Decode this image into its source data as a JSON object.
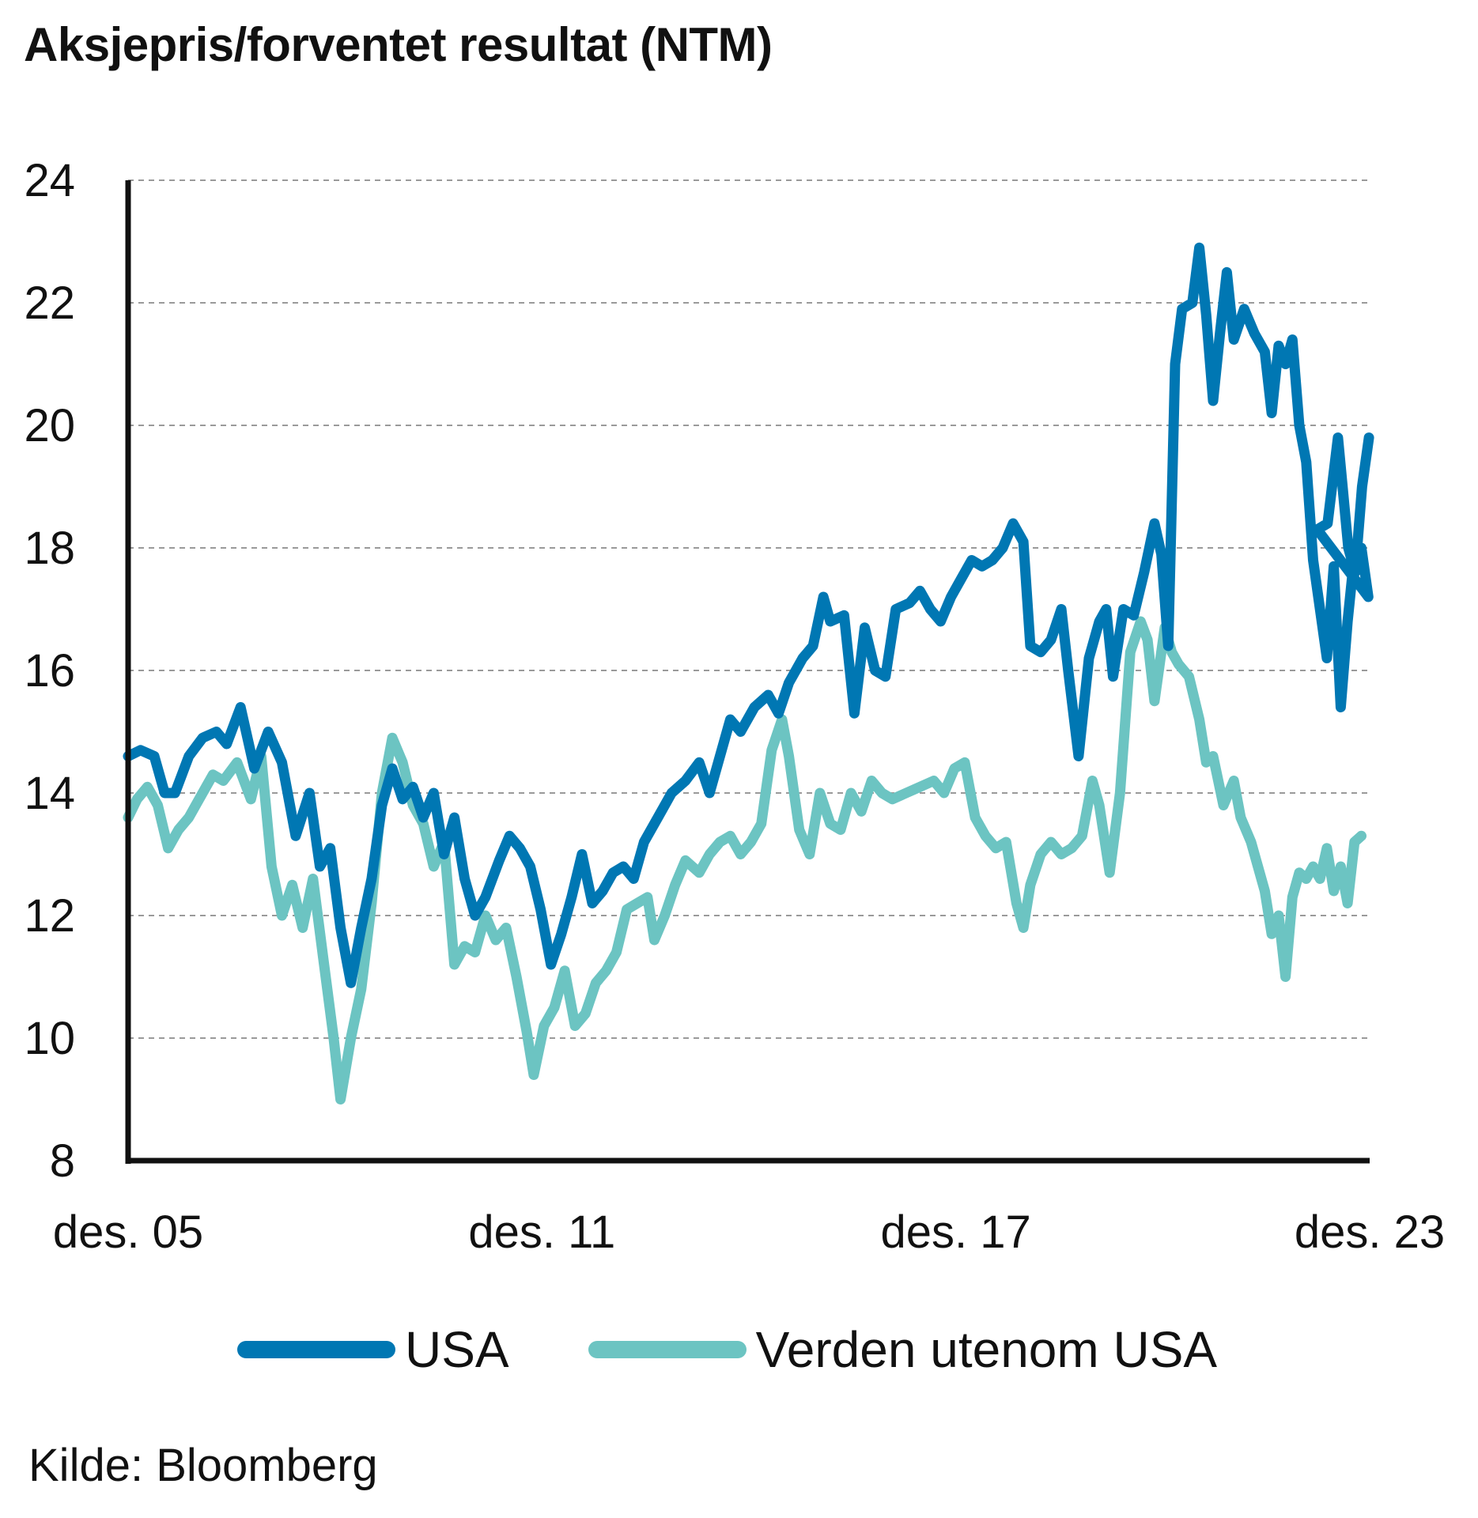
{
  "title": "Aksjepris/forventet resultat (NTM)",
  "source": "Kilde: Bloomberg",
  "chart_data": {
    "type": "line",
    "title": "Aksjepris/forventet resultat (NTM)",
    "xlabel": "",
    "ylabel": "",
    "ylim": [
      8,
      24
    ],
    "yticks": [
      8,
      10,
      12,
      14,
      16,
      18,
      20,
      22,
      24
    ],
    "xlim": [
      2005.92,
      2023.92
    ],
    "xticks": [
      {
        "x": 2005.92,
        "label": "des. 05"
      },
      {
        "x": 2011.92,
        "label": "des. 11"
      },
      {
        "x": 2017.92,
        "label": "des. 17"
      },
      {
        "x": 2023.92,
        "label": "des. 23"
      }
    ],
    "grid": "horizontal dashed",
    "legend_position": "bottom",
    "series": [
      {
        "name": "USA",
        "color": "#0077b3",
        "points": [
          [
            2005.92,
            14.6
          ],
          [
            2006.1,
            14.7
          ],
          [
            2006.3,
            14.6
          ],
          [
            2006.45,
            14.0
          ],
          [
            2006.6,
            14.0
          ],
          [
            2006.8,
            14.6
          ],
          [
            2007.0,
            14.9
          ],
          [
            2007.2,
            15.0
          ],
          [
            2007.35,
            14.8
          ],
          [
            2007.55,
            15.4
          ],
          [
            2007.75,
            14.4
          ],
          [
            2007.95,
            15.0
          ],
          [
            2008.15,
            14.5
          ],
          [
            2008.35,
            13.3
          ],
          [
            2008.55,
            14.0
          ],
          [
            2008.7,
            12.8
          ],
          [
            2008.85,
            13.1
          ],
          [
            2009.0,
            11.8
          ],
          [
            2009.15,
            10.9
          ],
          [
            2009.3,
            11.8
          ],
          [
            2009.45,
            12.6
          ],
          [
            2009.6,
            13.8
          ],
          [
            2009.75,
            14.4
          ],
          [
            2009.9,
            13.9
          ],
          [
            2010.05,
            14.1
          ],
          [
            2010.2,
            13.6
          ],
          [
            2010.35,
            14.0
          ],
          [
            2010.5,
            13.0
          ],
          [
            2010.65,
            13.6
          ],
          [
            2010.8,
            12.6
          ],
          [
            2010.95,
            12.0
          ],
          [
            2011.1,
            12.3
          ],
          [
            2011.3,
            12.9
          ],
          [
            2011.45,
            13.3
          ],
          [
            2011.6,
            13.1
          ],
          [
            2011.75,
            12.8
          ],
          [
            2011.9,
            12.1
          ],
          [
            2012.05,
            11.2
          ],
          [
            2012.2,
            11.7
          ],
          [
            2012.35,
            12.3
          ],
          [
            2012.5,
            13.0
          ],
          [
            2012.65,
            12.2
          ],
          [
            2012.8,
            12.4
          ],
          [
            2012.95,
            12.7
          ],
          [
            2013.1,
            12.8
          ],
          [
            2013.25,
            12.6
          ],
          [
            2013.4,
            13.2
          ],
          [
            2013.6,
            13.6
          ],
          [
            2013.8,
            14.0
          ],
          [
            2014.0,
            14.2
          ],
          [
            2014.2,
            14.5
          ],
          [
            2014.35,
            14.0
          ],
          [
            2014.5,
            14.6
          ],
          [
            2014.65,
            15.2
          ],
          [
            2014.8,
            15.0
          ],
          [
            2015.0,
            15.4
          ],
          [
            2015.2,
            15.6
          ],
          [
            2015.35,
            15.3
          ],
          [
            2015.5,
            15.8
          ],
          [
            2015.7,
            16.2
          ],
          [
            2015.85,
            16.4
          ],
          [
            2016.0,
            17.2
          ],
          [
            2016.1,
            16.8
          ],
          [
            2016.3,
            16.9
          ],
          [
            2016.45,
            15.3
          ],
          [
            2016.6,
            16.7
          ],
          [
            2016.75,
            16.0
          ],
          [
            2016.9,
            15.9
          ],
          [
            2017.05,
            17.0
          ],
          [
            2017.25,
            17.1
          ],
          [
            2017.4,
            17.3
          ],
          [
            2017.55,
            17.0
          ],
          [
            2017.7,
            16.8
          ],
          [
            2017.85,
            17.2
          ],
          [
            2018.0,
            17.5
          ],
          [
            2018.15,
            17.8
          ],
          [
            2018.3,
            17.7
          ],
          [
            2018.45,
            17.8
          ],
          [
            2018.6,
            18.0
          ],
          [
            2018.75,
            18.4
          ],
          [
            2018.9,
            18.1
          ],
          [
            2019.0,
            16.4
          ],
          [
            2019.15,
            16.3
          ],
          [
            2019.3,
            16.5
          ],
          [
            2019.45,
            17.0
          ],
          [
            2019.55,
            16.0
          ],
          [
            2019.7,
            14.6
          ],
          [
            2019.85,
            16.2
          ],
          [
            2020.0,
            16.8
          ],
          [
            2020.1,
            17.0
          ],
          [
            2020.2,
            15.9
          ],
          [
            2020.35,
            17.0
          ],
          [
            2020.5,
            16.9
          ],
          [
            2020.65,
            17.6
          ],
          [
            2020.8,
            18.4
          ],
          [
            2020.9,
            17.9
          ],
          [
            2021.0,
            16.4
          ],
          [
            2021.1,
            21.0
          ],
          [
            2021.2,
            21.9
          ],
          [
            2021.35,
            22.0
          ],
          [
            2021.45,
            22.9
          ],
          [
            2021.55,
            21.8
          ],
          [
            2021.65,
            20.4
          ],
          [
            2021.75,
            21.5
          ],
          [
            2021.85,
            22.5
          ],
          [
            2021.95,
            21.4
          ],
          [
            2022.1,
            21.9
          ],
          [
            2022.25,
            21.5
          ],
          [
            2022.4,
            21.2
          ],
          [
            2022.5,
            20.2
          ],
          [
            2022.6,
            21.3
          ],
          [
            2022.7,
            21.0
          ],
          [
            2022.8,
            21.4
          ],
          [
            2022.9,
            20.0
          ],
          [
            2023.0,
            19.4
          ],
          [
            2023.1,
            17.8
          ],
          [
            2023.2,
            17.0
          ],
          [
            2023.3,
            16.2
          ],
          [
            2023.4,
            17.7
          ],
          [
            2023.5,
            15.4
          ],
          [
            2023.6,
            16.8
          ],
          [
            2023.7,
            17.9
          ],
          [
            2023.8,
            18.0
          ],
          [
            2023.9,
            17.2
          ],
          [
            2024.0,
            18.3
          ],
          [
            2024.15,
            18.4
          ],
          [
            2024.3,
            19.8
          ],
          [
            2024.45,
            18.0
          ],
          [
            2024.55,
            17.6
          ],
          [
            2024.65,
            19.0
          ],
          [
            2024.75,
            19.8
          ]
        ]
      },
      {
        "name": "Verden utenom USA",
        "color": "#6cc4c2",
        "points": [
          [
            2005.92,
            13.6
          ],
          [
            2006.05,
            13.9
          ],
          [
            2006.2,
            14.1
          ],
          [
            2006.35,
            13.8
          ],
          [
            2006.5,
            13.1
          ],
          [
            2006.65,
            13.4
          ],
          [
            2006.8,
            13.6
          ],
          [
            2006.95,
            13.9
          ],
          [
            2007.15,
            14.3
          ],
          [
            2007.3,
            14.2
          ],
          [
            2007.5,
            14.5
          ],
          [
            2007.7,
            13.9
          ],
          [
            2007.85,
            14.6
          ],
          [
            2008.0,
            12.8
          ],
          [
            2008.15,
            12.0
          ],
          [
            2008.3,
            12.5
          ],
          [
            2008.45,
            11.8
          ],
          [
            2008.6,
            12.6
          ],
          [
            2008.75,
            11.3
          ],
          [
            2008.9,
            10.0
          ],
          [
            2009.0,
            9.0
          ],
          [
            2009.15,
            10.0
          ],
          [
            2009.3,
            10.8
          ],
          [
            2009.45,
            12.2
          ],
          [
            2009.6,
            14.0
          ],
          [
            2009.75,
            14.9
          ],
          [
            2009.9,
            14.5
          ],
          [
            2010.05,
            13.8
          ],
          [
            2010.2,
            13.5
          ],
          [
            2010.35,
            12.8
          ],
          [
            2010.5,
            13.2
          ],
          [
            2010.65,
            11.2
          ],
          [
            2010.8,
            11.5
          ],
          [
            2010.95,
            11.4
          ],
          [
            2011.1,
            12.0
          ],
          [
            2011.25,
            11.6
          ],
          [
            2011.4,
            11.8
          ],
          [
            2011.55,
            11.0
          ],
          [
            2011.7,
            10.1
          ],
          [
            2011.8,
            9.4
          ],
          [
            2011.95,
            10.2
          ],
          [
            2012.1,
            10.5
          ],
          [
            2012.25,
            11.1
          ],
          [
            2012.4,
            10.2
          ],
          [
            2012.55,
            10.4
          ],
          [
            2012.7,
            10.9
          ],
          [
            2012.85,
            11.1
          ],
          [
            2013.0,
            11.4
          ],
          [
            2013.15,
            12.1
          ],
          [
            2013.3,
            12.2
          ],
          [
            2013.45,
            12.3
          ],
          [
            2013.55,
            11.6
          ],
          [
            2013.7,
            12.0
          ],
          [
            2013.85,
            12.5
          ],
          [
            2014.0,
            12.9
          ],
          [
            2014.2,
            12.7
          ],
          [
            2014.35,
            13.0
          ],
          [
            2014.5,
            13.2
          ],
          [
            2014.65,
            13.3
          ],
          [
            2014.8,
            13.0
          ],
          [
            2014.95,
            13.2
          ],
          [
            2015.1,
            13.5
          ],
          [
            2015.25,
            14.7
          ],
          [
            2015.4,
            15.2
          ],
          [
            2015.5,
            14.6
          ],
          [
            2015.65,
            13.4
          ],
          [
            2015.8,
            13.0
          ],
          [
            2015.95,
            14.0
          ],
          [
            2016.1,
            13.5
          ],
          [
            2016.25,
            13.4
          ],
          [
            2016.4,
            14.0
          ],
          [
            2016.55,
            13.7
          ],
          [
            2016.7,
            14.2
          ],
          [
            2016.85,
            14.0
          ],
          [
            2017.0,
            13.9
          ],
          [
            2017.2,
            14.0
          ],
          [
            2017.4,
            14.1
          ],
          [
            2017.6,
            14.2
          ],
          [
            2017.75,
            14.0
          ],
          [
            2017.9,
            14.4
          ],
          [
            2018.05,
            14.5
          ],
          [
            2018.2,
            13.6
          ],
          [
            2018.35,
            13.3
          ],
          [
            2018.5,
            13.1
          ],
          [
            2018.65,
            13.2
          ],
          [
            2018.8,
            12.2
          ],
          [
            2018.9,
            11.8
          ],
          [
            2019.0,
            12.5
          ],
          [
            2019.15,
            13.0
          ],
          [
            2019.3,
            13.2
          ],
          [
            2019.45,
            13.0
          ],
          [
            2019.6,
            13.1
          ],
          [
            2019.75,
            13.3
          ],
          [
            2019.9,
            14.2
          ],
          [
            2020.0,
            13.8
          ],
          [
            2020.15,
            12.7
          ],
          [
            2020.3,
            14.0
          ],
          [
            2020.45,
            16.3
          ],
          [
            2020.6,
            16.8
          ],
          [
            2020.7,
            16.5
          ],
          [
            2020.8,
            15.5
          ],
          [
            2020.95,
            16.7
          ],
          [
            2021.05,
            16.3
          ],
          [
            2021.15,
            16.1
          ],
          [
            2021.3,
            15.9
          ],
          [
            2021.45,
            15.2
          ],
          [
            2021.55,
            14.5
          ],
          [
            2021.65,
            14.6
          ],
          [
            2021.8,
            13.8
          ],
          [
            2021.95,
            14.2
          ],
          [
            2022.05,
            13.6
          ],
          [
            2022.2,
            13.2
          ],
          [
            2022.3,
            12.8
          ],
          [
            2022.4,
            12.4
          ],
          [
            2022.5,
            11.7
          ],
          [
            2022.6,
            12.0
          ],
          [
            2022.7,
            11.0
          ],
          [
            2022.8,
            12.3
          ],
          [
            2022.9,
            12.7
          ],
          [
            2023.0,
            12.6
          ],
          [
            2023.1,
            12.8
          ],
          [
            2023.2,
            12.6
          ],
          [
            2023.3,
            13.1
          ],
          [
            2023.4,
            12.4
          ],
          [
            2023.5,
            12.8
          ],
          [
            2023.6,
            12.2
          ],
          [
            2023.7,
            13.2
          ],
          [
            2023.8,
            13.3
          ]
        ]
      }
    ]
  }
}
